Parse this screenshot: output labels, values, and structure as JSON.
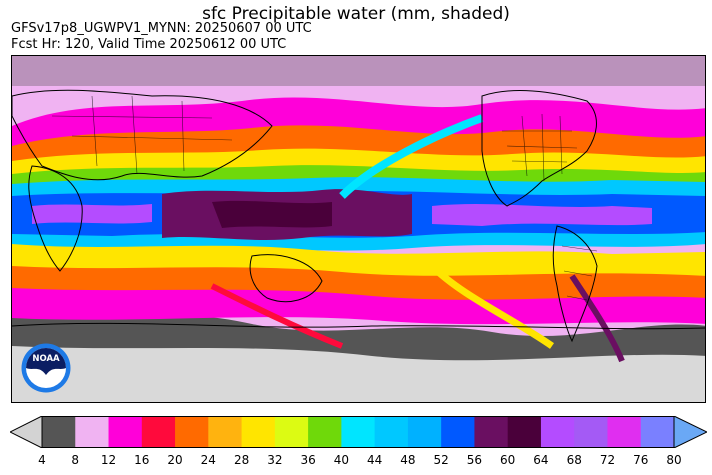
{
  "header": {
    "title": "sfc Precipitable water (mm, shaded)",
    "run_line": "GFSv17p8_UGWPV1_MYNN: 20250607 00 UTC",
    "valid_line": "Fcst Hr: 120, Valid Time 20250612 00 UTC"
  },
  "map": {
    "projection": "cylindrical, Pacific-centered global",
    "overlays": [
      "coastlines",
      "country-borders",
      "state-borders"
    ],
    "land_mask_color": "#d9d9d9",
    "border_color": "#000000"
  },
  "logo": {
    "text": "NOAA",
    "colors": {
      "outer": "#1e7ae6",
      "inner": "#0b1e63",
      "bird": "#ffffff"
    }
  },
  "colorbar": {
    "units": "mm",
    "extend": "both",
    "under_color": "#d3d3d3",
    "over_color": "#6aa8f5",
    "ticks": [
      "4",
      "8",
      "12",
      "16",
      "20",
      "24",
      "28",
      "32",
      "36",
      "40",
      "44",
      "48",
      "52",
      "56",
      "60",
      "64",
      "68",
      "72",
      "76",
      "80"
    ],
    "colors": [
      "#555555",
      "#f0b3f2",
      "#ff00d9",
      "#ff0a3c",
      "#ff6a00",
      "#ffb30f",
      "#ffe500",
      "#dcfb13",
      "#6fd90a",
      "#00e5ff",
      "#00c8ff",
      "#00b1ff",
      "#0059ff",
      "#6a0f61",
      "#4a003a",
      "#b44cff",
      "#a45af5",
      "#e02ef0",
      "#7a80ff"
    ]
  }
}
